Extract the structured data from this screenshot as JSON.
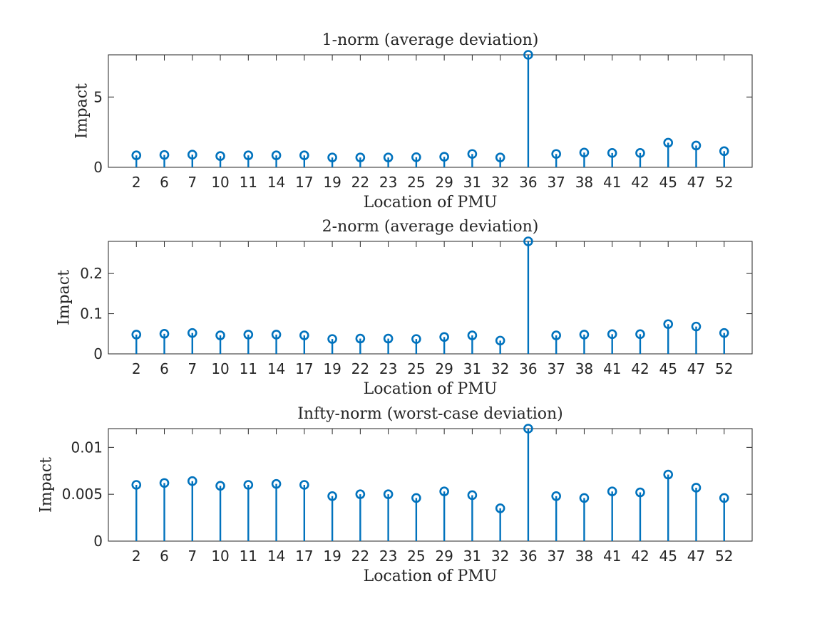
{
  "colors": {
    "stem": "#0072bd",
    "axis": "#262626"
  },
  "chart_data": [
    {
      "type": "stem",
      "title": "1-norm (average deviation)",
      "xlabel": "Location of PMU",
      "ylabel": "Impact",
      "categories": [
        "2",
        "6",
        "7",
        "10",
        "11",
        "14",
        "17",
        "19",
        "22",
        "23",
        "25",
        "29",
        "31",
        "32",
        "36",
        "37",
        "38",
        "41",
        "42",
        "45",
        "47",
        "52"
      ],
      "values": [
        0.85,
        0.88,
        0.9,
        0.8,
        0.85,
        0.85,
        0.85,
        0.7,
        0.7,
        0.7,
        0.72,
        0.75,
        0.95,
        0.7,
        8.0,
        0.95,
        1.05,
        1.02,
        1.02,
        1.75,
        1.55,
        1.15
      ],
      "ylim": [
        0,
        8
      ],
      "yticks": [
        0,
        5
      ],
      "ytick_labels": [
        "0",
        "5"
      ]
    },
    {
      "type": "stem",
      "title": "2-norm (average deviation)",
      "xlabel": "Location of PMU",
      "ylabel": "Impact",
      "categories": [
        "2",
        "6",
        "7",
        "10",
        "11",
        "14",
        "17",
        "19",
        "22",
        "23",
        "25",
        "29",
        "31",
        "32",
        "36",
        "37",
        "38",
        "41",
        "42",
        "45",
        "47",
        "52"
      ],
      "values": [
        0.048,
        0.05,
        0.052,
        0.046,
        0.048,
        0.048,
        0.046,
        0.037,
        0.038,
        0.038,
        0.037,
        0.042,
        0.046,
        0.033,
        0.28,
        0.046,
        0.048,
        0.049,
        0.049,
        0.074,
        0.068,
        0.052
      ],
      "ylim": [
        0,
        0.28
      ],
      "yticks": [
        0,
        0.1,
        0.2
      ],
      "ytick_labels": [
        "0",
        "0.1",
        "0.2"
      ]
    },
    {
      "type": "stem",
      "title": "Infty-norm (worst-case deviation)",
      "xlabel": "Location of PMU",
      "ylabel": "Impact",
      "categories": [
        "2",
        "6",
        "7",
        "10",
        "11",
        "14",
        "17",
        "19",
        "22",
        "23",
        "25",
        "29",
        "31",
        "32",
        "36",
        "37",
        "38",
        "41",
        "42",
        "45",
        "47",
        "52"
      ],
      "values": [
        0.006,
        0.0062,
        0.0064,
        0.0059,
        0.006,
        0.0061,
        0.006,
        0.0048,
        0.005,
        0.005,
        0.0046,
        0.0053,
        0.0049,
        0.0035,
        0.012,
        0.0048,
        0.0046,
        0.0053,
        0.0052,
        0.0071,
        0.0057,
        0.0046
      ],
      "ylim": [
        0,
        0.012
      ],
      "yticks": [
        0,
        0.005,
        0.01
      ],
      "ytick_labels": [
        "0",
        "0.005",
        "0.01"
      ]
    }
  ]
}
